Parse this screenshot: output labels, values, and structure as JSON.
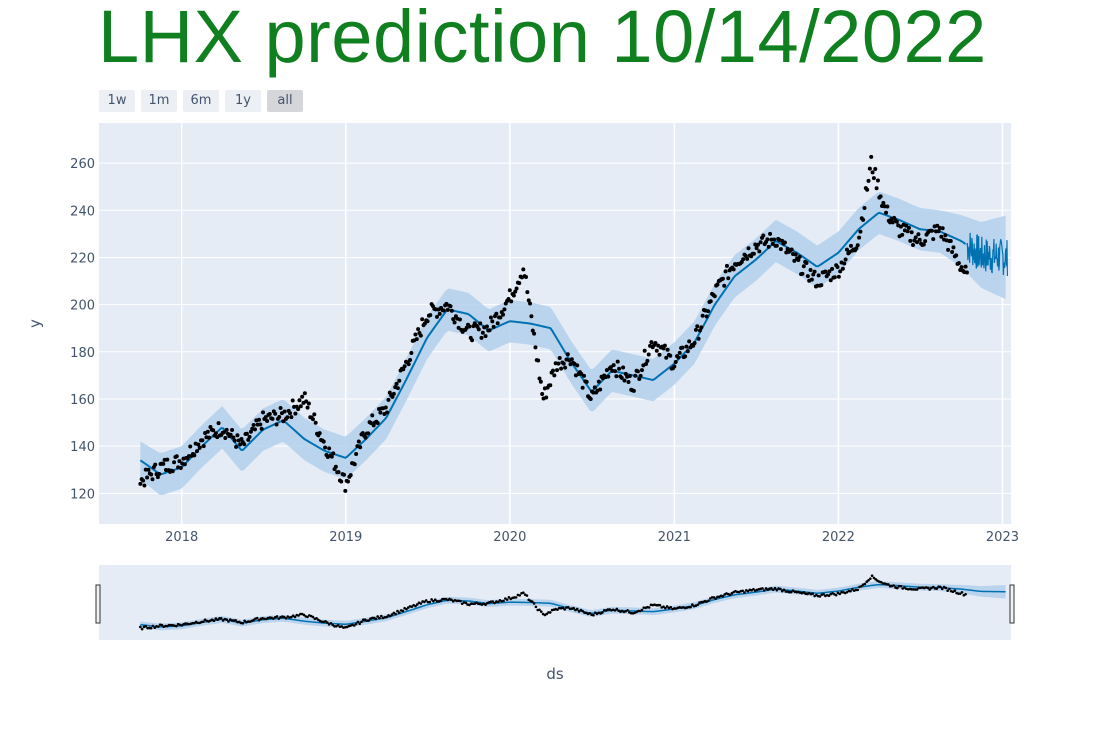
{
  "title": "LHX prediction 10/14/2022",
  "range_buttons": [
    {
      "label": "1w",
      "active": false
    },
    {
      "label": "1m",
      "active": false
    },
    {
      "label": "6m",
      "active": false
    },
    {
      "label": "1y",
      "active": false
    },
    {
      "label": "all",
      "active": true
    }
  ],
  "colors": {
    "title": "#0f7f1f",
    "plot_bg": "#e5ecf6",
    "forecast_line": "#0072b2",
    "uncertainty_band": "#b3d0ec",
    "points": "#000000"
  },
  "chart_data": {
    "type": "line",
    "title": "",
    "xlabel": "ds",
    "ylabel": "y",
    "xlim": [
      "2017-07-01",
      "2023-01-20"
    ],
    "ylim": [
      107,
      277
    ],
    "x_tick_labels": [
      "2018",
      "2019",
      "2020",
      "2021",
      "2022",
      "2023"
    ],
    "y_tick_labels": [
      "120",
      "140",
      "160",
      "180",
      "200",
      "220",
      "240",
      "260"
    ],
    "grid": true,
    "has_range_slider": true,
    "history_end": "2022-10-14",
    "forecast_end": "2023-01-12",
    "series": [
      {
        "role": "forecast",
        "x": [
          "2017-10-01",
          "2017-11-15",
          "2018-01-01",
          "2018-02-15",
          "2018-04-01",
          "2018-05-15",
          "2018-07-01",
          "2018-08-15",
          "2018-10-01",
          "2018-11-15",
          "2019-01-01",
          "2019-02-15",
          "2019-04-01",
          "2019-05-15",
          "2019-07-01",
          "2019-08-15",
          "2019-10-01",
          "2019-11-15",
          "2020-01-01",
          "2020-02-15",
          "2020-04-01",
          "2020-05-15",
          "2020-07-01",
          "2020-08-15",
          "2020-10-01",
          "2020-11-15",
          "2021-01-01",
          "2021-02-15",
          "2021-04-01",
          "2021-05-15",
          "2021-07-01",
          "2021-08-15",
          "2021-10-01",
          "2021-11-15",
          "2022-01-01",
          "2022-02-15",
          "2022-04-01",
          "2022-05-15",
          "2022-07-01",
          "2022-08-15",
          "2022-10-01",
          "2022-11-15",
          "2023-01-12"
        ],
        "yhat": [
          134,
          128,
          131,
          140,
          148,
          138,
          147,
          151,
          143,
          138,
          135,
          143,
          152,
          168,
          186,
          198,
          196,
          189,
          193,
          192,
          190,
          176,
          163,
          172,
          170,
          168,
          175,
          184,
          200,
          212,
          219,
          227,
          222,
          216,
          222,
          232,
          239,
          236,
          232,
          231,
          227,
          221,
          220
        ],
        "lower": [
          126,
          119,
          122,
          131,
          139,
          129,
          138,
          142,
          134,
          129,
          126,
          134,
          143,
          159,
          177,
          189,
          187,
          180,
          184,
          183,
          181,
          167,
          154,
          163,
          161,
          159,
          166,
          175,
          191,
          203,
          210,
          218,
          213,
          207,
          213,
          223,
          230,
          227,
          223,
          222,
          216,
          207,
          202
        ],
        "upper": [
          142,
          137,
          140,
          149,
          157,
          147,
          156,
          160,
          152,
          147,
          144,
          152,
          161,
          177,
          195,
          207,
          205,
          198,
          202,
          201,
          199,
          185,
          172,
          181,
          179,
          177,
          184,
          193,
          209,
          221,
          228,
          236,
          231,
          225,
          231,
          241,
          248,
          245,
          241,
          240,
          238,
          235,
          238
        ]
      },
      {
        "role": "actual",
        "x": [
          "2017-10-01",
          "2017-11-15",
          "2018-01-01",
          "2018-02-15",
          "2018-04-01",
          "2018-05-15",
          "2018-07-01",
          "2018-08-15",
          "2018-10-01",
          "2018-11-15",
          "2019-01-01",
          "2019-02-15",
          "2019-04-01",
          "2019-05-15",
          "2019-07-01",
          "2019-08-15",
          "2019-10-01",
          "2019-11-15",
          "2020-01-01",
          "2020-02-01",
          "2020-03-15",
          "2020-04-15",
          "2020-05-15",
          "2020-07-01",
          "2020-08-15",
          "2020-10-01",
          "2020-11-15",
          "2021-01-01",
          "2021-02-15",
          "2021-04-01",
          "2021-05-15",
          "2021-07-01",
          "2021-08-15",
          "2021-10-01",
          "2021-11-15",
          "2022-01-01",
          "2022-02-15",
          "2022-03-15",
          "2022-04-15",
          "2022-05-15",
          "2022-07-01",
          "2022-08-15",
          "2022-10-14"
        ],
        "y": [
          125,
          131,
          134,
          143,
          148,
          140,
          151,
          153,
          160,
          141,
          124,
          147,
          156,
          175,
          196,
          200,
          188,
          190,
          203,
          216,
          160,
          175,
          178,
          160,
          175,
          166,
          185,
          175,
          185,
          205,
          218,
          225,
          228,
          218,
          210,
          215,
          228,
          260,
          240,
          232,
          227,
          232,
          212
        ]
      }
    ]
  }
}
